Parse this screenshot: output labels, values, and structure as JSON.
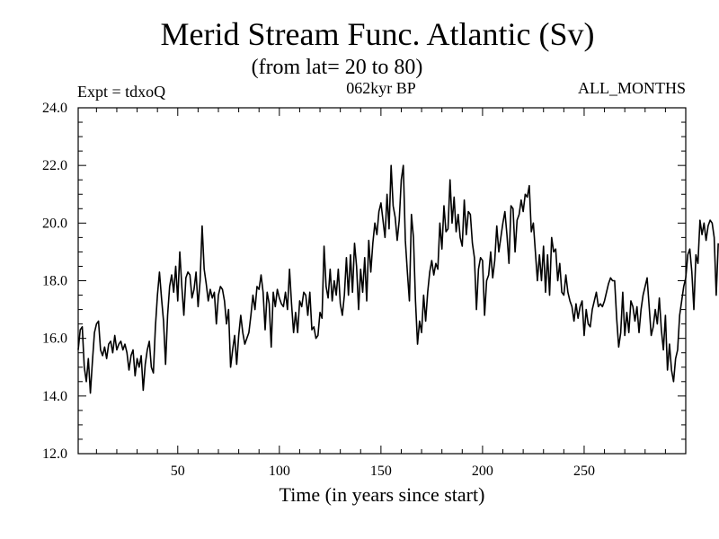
{
  "chart_data": {
    "type": "line",
    "title": "Merid Stream Func. Atlantic (Sv)",
    "subtitle": "(from lat= 20 to 80)",
    "experiment_label": "Expt = tdxoQ",
    "period_label": "062kyr BP",
    "months_label": "ALL_MONTHS",
    "xlabel": "Time (in years since start)",
    "ylabel": "",
    "xlim": [
      1,
      300
    ],
    "ylim": [
      12.0,
      24.0
    ],
    "x_ticks": [
      50,
      100,
      150,
      200,
      250
    ],
    "x_tick_labels": [
      "50",
      "100",
      "150",
      "200",
      "250"
    ],
    "y_ticks": [
      12.0,
      14.0,
      16.0,
      18.0,
      20.0,
      22.0,
      24.0
    ],
    "y_tick_labels": [
      "12.0",
      "14.0",
      "16.0",
      "18.0",
      "20.0",
      "22.0",
      "24.0"
    ],
    "grid": false,
    "series": [
      {
        "name": "Merid Stream Func. Atlantic",
        "x_start": 1,
        "x_step": 1,
        "values": [
          15.6,
          16.3,
          16.4,
          15.0,
          14.5,
          15.3,
          14.1,
          15.2,
          16.2,
          16.5,
          16.6,
          15.6,
          15.4,
          15.7,
          15.3,
          15.8,
          15.9,
          15.5,
          16.1,
          15.6,
          15.8,
          15.9,
          15.6,
          15.8,
          15.5,
          14.9,
          15.4,
          15.6,
          14.7,
          15.3,
          15.0,
          15.4,
          14.2,
          15.1,
          15.6,
          15.9,
          15.0,
          14.8,
          16.4,
          17.5,
          18.3,
          17.4,
          16.6,
          15.1,
          16.8,
          17.8,
          18.2,
          17.6,
          18.5,
          17.3,
          19.0,
          17.8,
          16.8,
          18.1,
          18.3,
          18.2,
          17.4,
          17.7,
          18.3,
          17.1,
          18.0,
          19.9,
          18.4,
          17.9,
          17.3,
          17.7,
          17.4,
          17.6,
          16.5,
          17.5,
          17.8,
          17.7,
          17.3,
          16.5,
          17.0,
          15.0,
          15.6,
          16.1,
          15.1,
          16.1,
          16.8,
          16.2,
          15.8,
          16.0,
          16.2,
          16.8,
          17.5,
          17.0,
          17.8,
          17.7,
          18.2,
          17.6,
          16.3,
          17.6,
          17.2,
          15.7,
          17.6,
          17.1,
          17.7,
          17.4,
          17.2,
          17.1,
          17.6,
          17.0,
          18.4,
          17.2,
          16.2,
          16.9,
          16.2,
          17.3,
          17.1,
          17.6,
          17.5,
          16.8,
          17.6,
          16.3,
          16.4,
          16.0,
          16.1,
          16.9,
          16.7,
          19.2,
          17.8,
          17.4,
          18.4,
          17.3,
          18.0,
          17.5,
          18.4,
          17.2,
          16.8,
          17.5,
          18.8,
          17.5,
          18.9,
          17.6,
          19.3,
          18.5,
          17.0,
          18.4,
          17.6,
          18.8,
          17.3,
          19.4,
          18.3,
          19.3,
          20.0,
          19.6,
          20.4,
          20.7,
          20.1,
          19.5,
          21.0,
          19.8,
          22.0,
          20.6,
          20.2,
          19.4,
          20.1,
          21.5,
          22.0,
          19.4,
          18.3,
          17.3,
          20.3,
          19.5,
          17.3,
          15.8,
          16.6,
          16.2,
          17.5,
          16.6,
          17.6,
          18.3,
          18.7,
          18.2,
          18.6,
          18.4,
          20.0,
          19.1,
          20.6,
          19.7,
          19.8,
          21.5,
          20.0,
          20.9,
          19.7,
          20.3,
          19.5,
          19.2,
          20.8,
          19.6,
          20.4,
          20.3,
          19.3,
          18.8,
          17.0,
          18.4,
          18.8,
          18.7,
          16.8,
          18.0,
          18.2,
          19.0,
          18.1,
          18.7,
          19.9,
          19.0,
          19.5,
          20.0,
          20.4,
          19.6,
          18.6,
          20.6,
          20.5,
          19.0,
          20.1,
          20.3,
          20.8,
          20.4,
          21.0,
          20.9,
          21.3,
          19.7,
          20.0,
          19.0,
          18.0,
          18.9,
          18.0,
          19.2,
          17.6,
          18.9,
          17.5,
          19.5,
          19.0,
          19.1,
          18.0,
          18.6,
          17.6,
          17.5,
          18.2,
          17.6,
          17.3,
          17.1,
          16.6,
          17.2,
          16.7,
          17.1,
          17.3,
          16.1,
          17.0,
          16.5,
          16.4,
          17.0,
          17.3,
          17.6,
          17.1,
          17.2,
          17.1,
          17.3,
          17.6,
          17.9,
          18.1,
          18.0,
          18.0,
          16.7,
          15.7,
          16.2,
          17.6,
          16.1,
          16.9,
          16.2,
          17.3,
          17.1,
          16.6,
          17.1,
          16.2,
          17.0,
          17.5,
          17.8,
          18.1,
          17.1,
          16.1,
          16.4,
          17.0,
          16.5,
          17.4,
          16.3,
          15.6,
          16.8,
          14.9,
          15.8,
          14.9,
          14.5,
          15.3,
          15.6,
          16.8,
          17.3,
          17.8,
          18.1,
          18.9,
          19.1,
          18.3,
          17.0,
          18.9,
          18.6,
          20.1,
          19.6,
          20.0,
          19.4,
          19.9,
          20.1,
          20.0,
          19.5,
          17.5,
          19.3
        ]
      }
    ]
  }
}
